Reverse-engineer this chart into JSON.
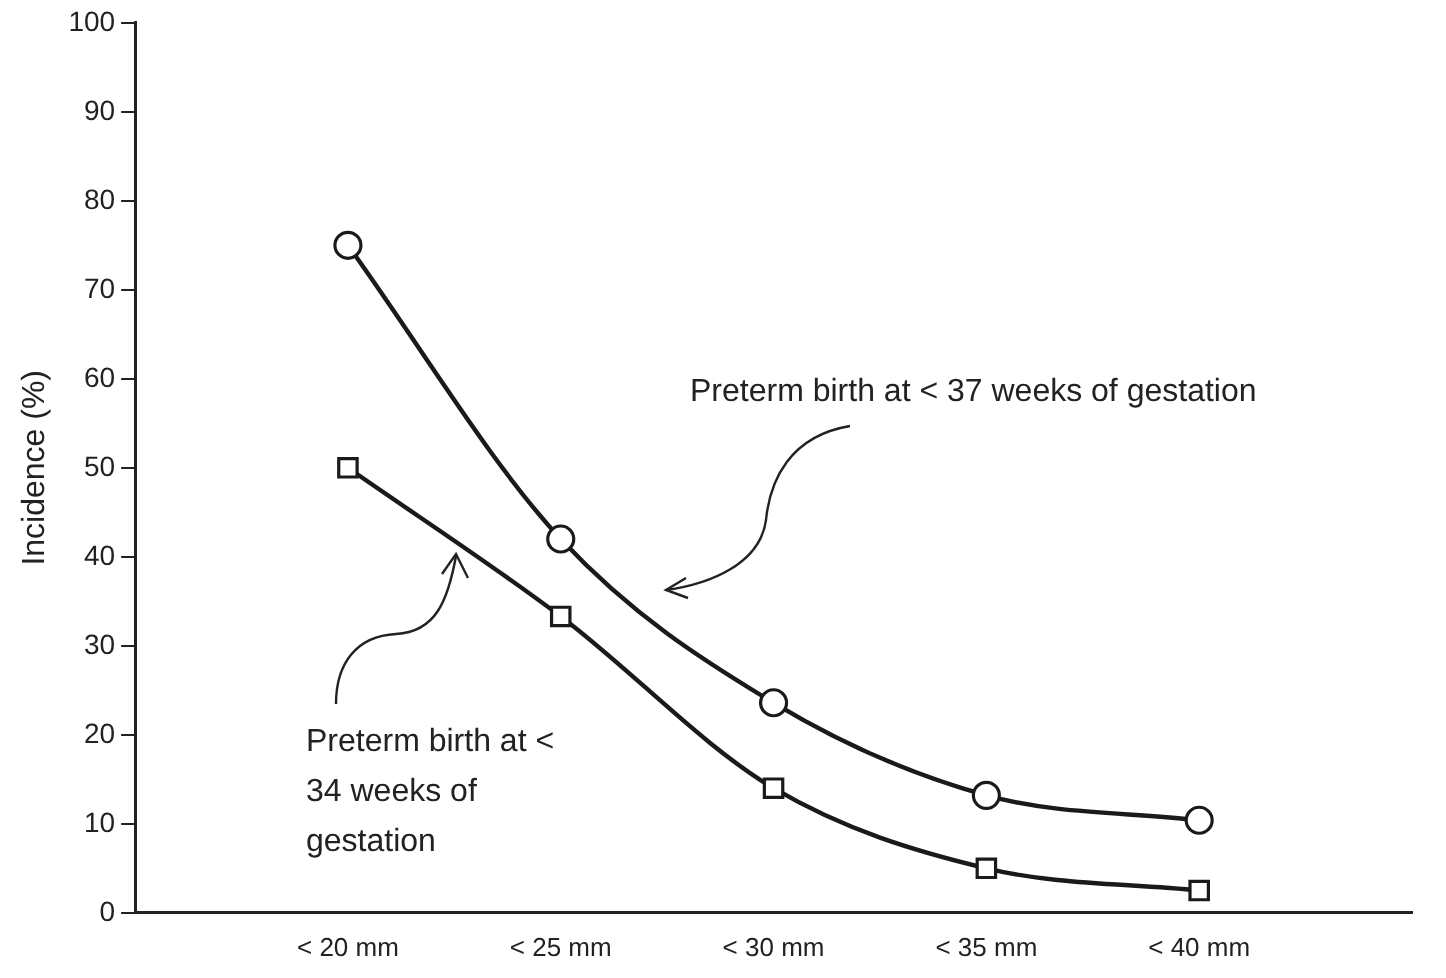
{
  "chart_data": {
    "type": "line",
    "ylabel": "Incidence (%)",
    "categories": [
      "< 20 mm",
      "< 25 mm",
      "< 30 mm",
      "< 35 mm",
      "< 40 mm"
    ],
    "series": [
      {
        "color": "#1a1a1a",
        "marker": "circle",
        "values": [
          75,
          42,
          23.6,
          13.2,
          10.4
        ]
      },
      {
        "color": "#1a1a1a",
        "marker": "square",
        "values": [
          50,
          33.3,
          14,
          5,
          2.5
        ]
      }
    ],
    "annotations": [
      "Preterm birth at < 37 weeks of gestation",
      "Preterm birth at < 34 weeks of gestation"
    ],
    "ylim": [
      0,
      100
    ],
    "yticks": [
      0,
      10,
      20,
      30,
      40,
      50,
      60,
      70,
      80,
      90,
      100
    ],
    "grid": false,
    "legend": false,
    "line_style": "solid"
  }
}
